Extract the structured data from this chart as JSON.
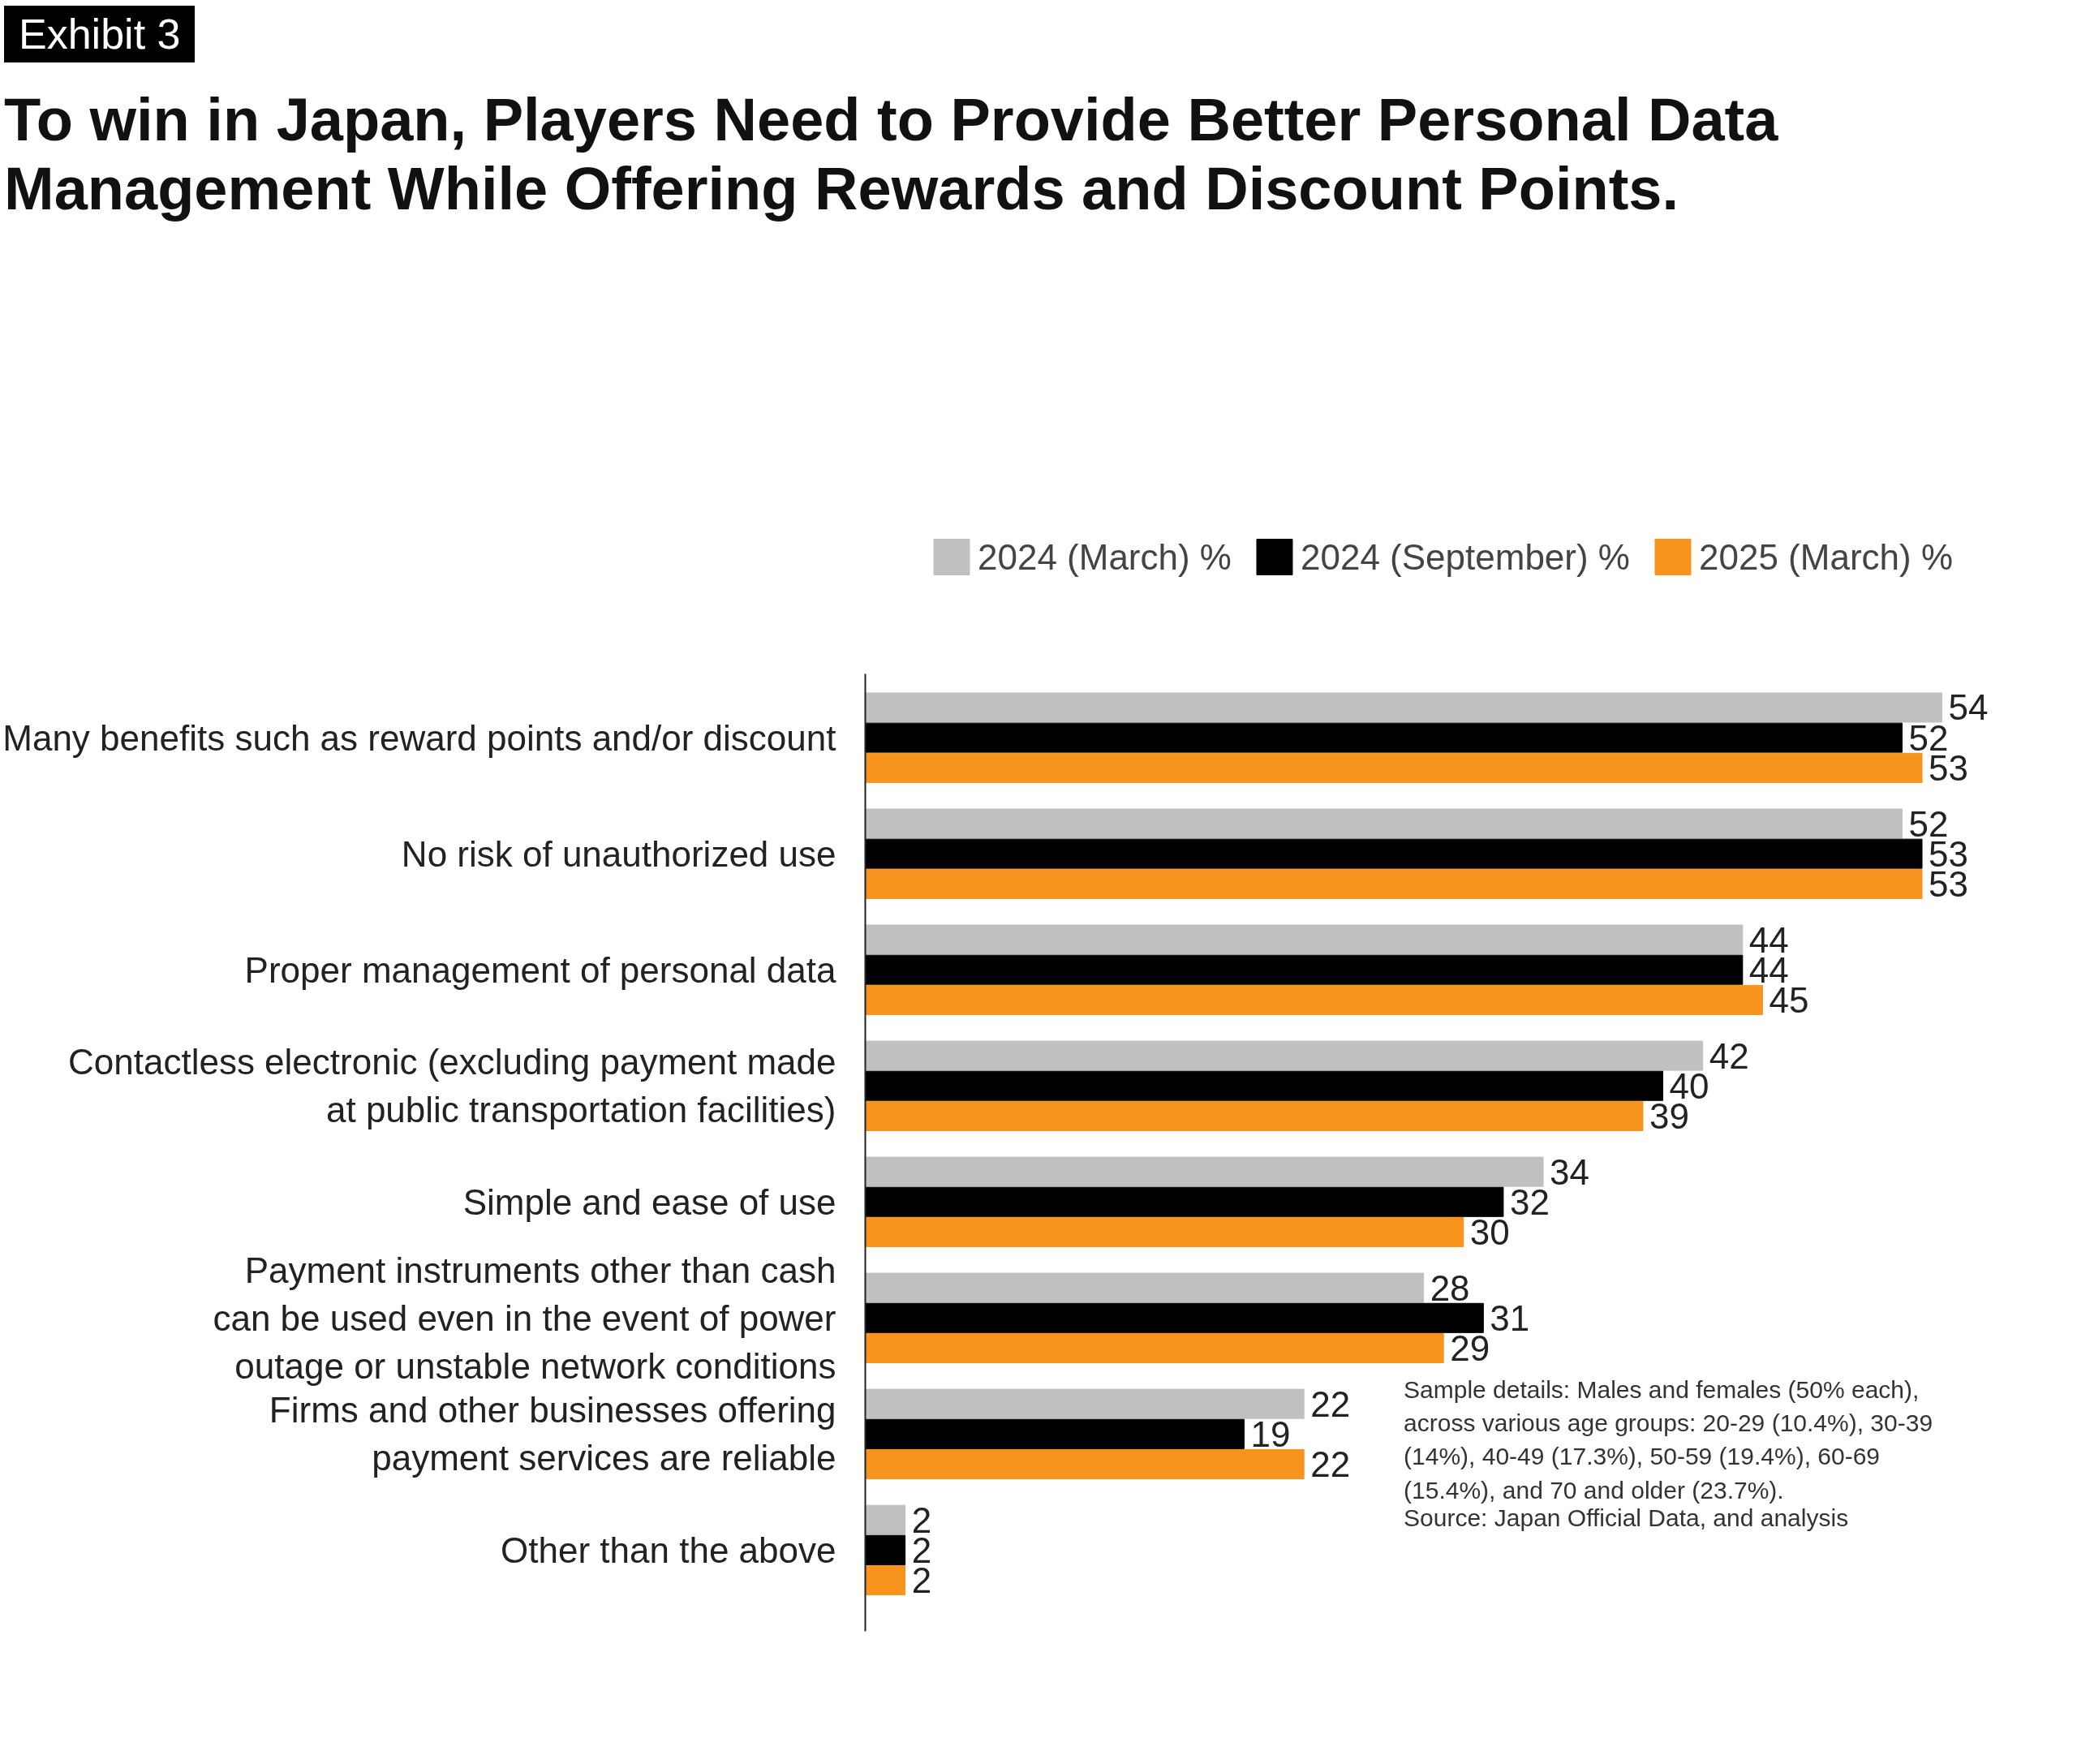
{
  "chart_data": {
    "type": "bar",
    "orientation": "horizontal",
    "title": "To win in Japan, Players Need to Provide Better Personal Data Management While Offering Rewards and Discount Points.",
    "categories": [
      "Many benefits such as reward points and/or discount",
      "No risk of unauthorized use",
      "Proper management of personal data",
      "Contactless electronic (excluding payment made\nat public transportation facilities)",
      "Simple and ease of use",
      "Payment instruments other than cash\ncan be used even in the event of power\noutage or unstable network conditions",
      "Firms and other businesses offering\npayment services are reliable",
      "Other than the above"
    ],
    "series": [
      {
        "name": "2024 (March) %",
        "color": "#c0c0c0",
        "values": [
          54,
          52,
          44,
          42,
          34,
          28,
          22,
          2
        ]
      },
      {
        "name": "2024 (September) %",
        "color": "#000000",
        "values": [
          52,
          53,
          44,
          40,
          32,
          31,
          19,
          2
        ]
      },
      {
        "name": "2025 (March) %",
        "color": "#f7941d",
        "values": [
          53,
          53,
          45,
          39,
          30,
          29,
          22,
          2
        ]
      }
    ],
    "data_labels": true,
    "legend": "top",
    "grid": false,
    "annotations": [
      "Exhibit 3",
      "Sample details: Males and females (50% each), across various age groups: 20-29 (10.4%), 30-39 (14%), 40-49 (17.3%), 50-59 (19.4%), 60-69 (15.4%), and 70 and older (23.7%).",
      "Source: Japan Official Data, and analysis"
    ]
  }
}
